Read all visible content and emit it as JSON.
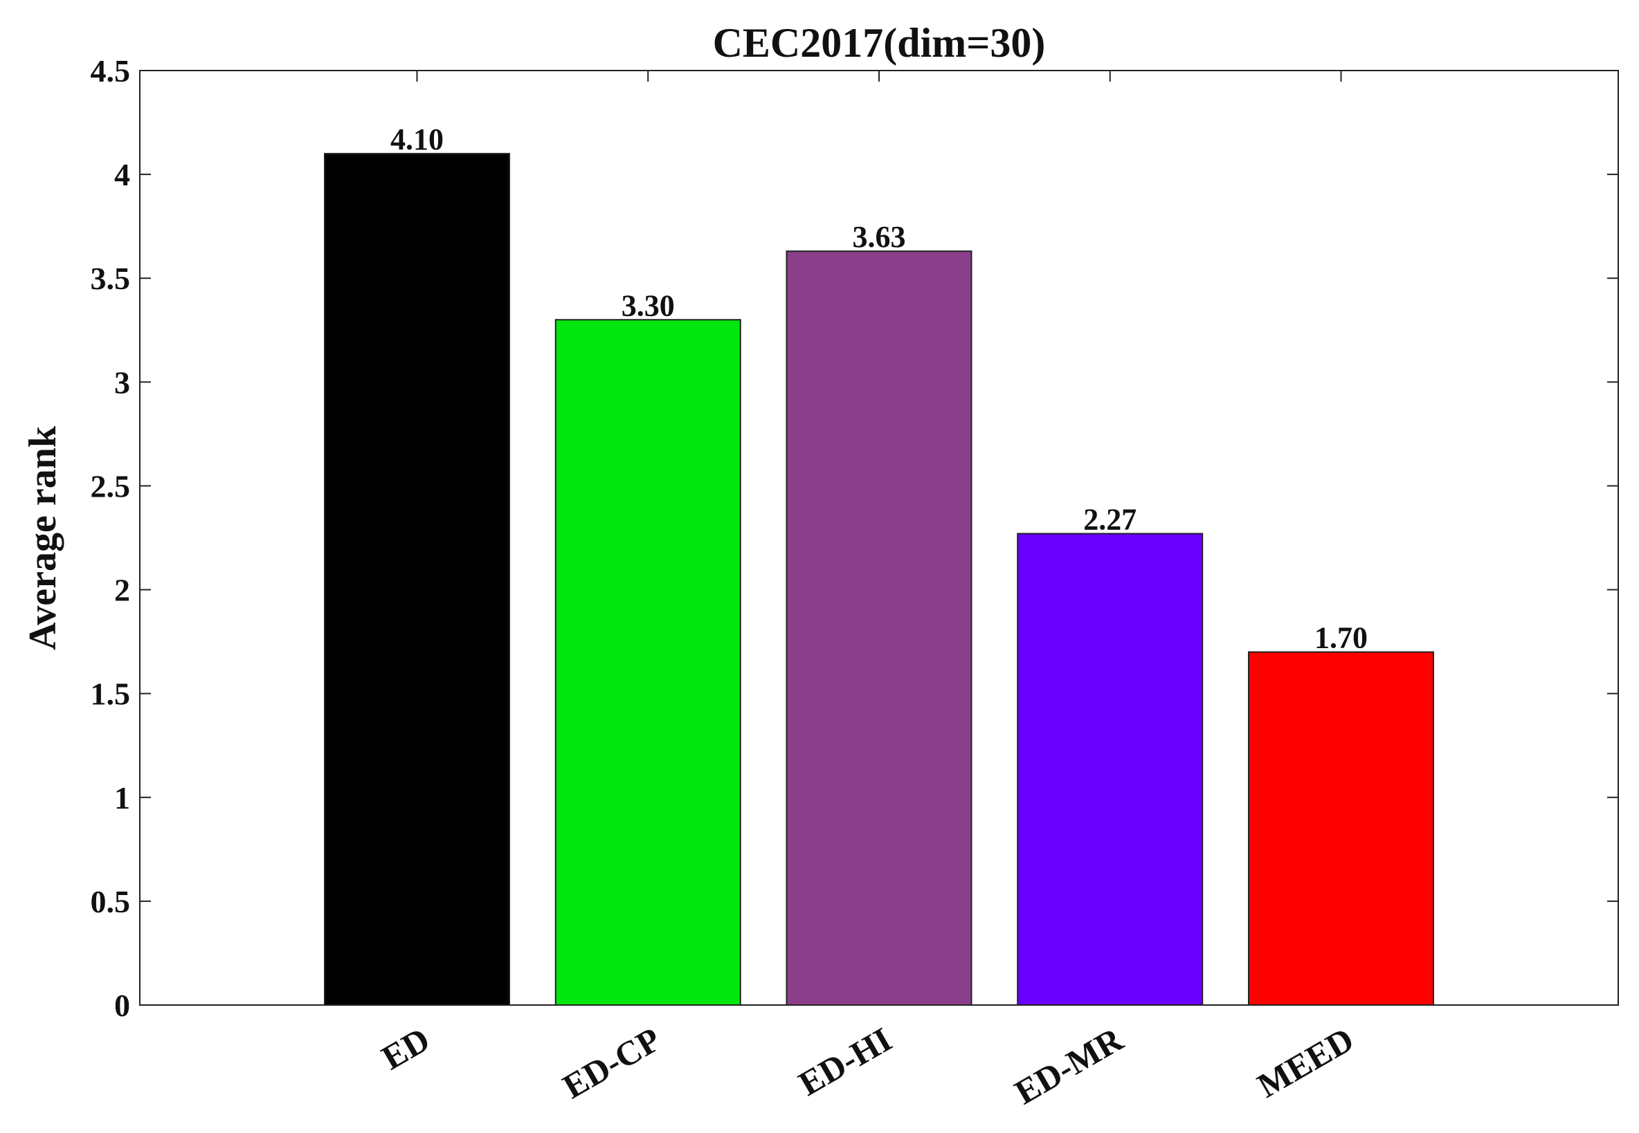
{
  "chart_data": {
    "type": "bar",
    "title": "CEC2017(dim=30)",
    "y_label": "Average rank",
    "categories": [
      "ED",
      "ED-CP",
      "ED-HI",
      "ED-MR",
      "MEED"
    ],
    "values": [
      4.1,
      3.3,
      3.63,
      2.27,
      1.7
    ],
    "value_labels": [
      "4.10",
      "3.30",
      "3.63",
      "2.27",
      "1.70"
    ],
    "colors": [
      "#000000",
      "#00e60e",
      "#8b3f8a",
      "#6a00ff",
      "#ff0000"
    ],
    "ylim": [
      0,
      4.5
    ],
    "yticks": [
      0,
      0.5,
      1,
      1.5,
      2,
      2.5,
      3,
      3.5,
      4,
      4.5
    ],
    "grid": false
  }
}
